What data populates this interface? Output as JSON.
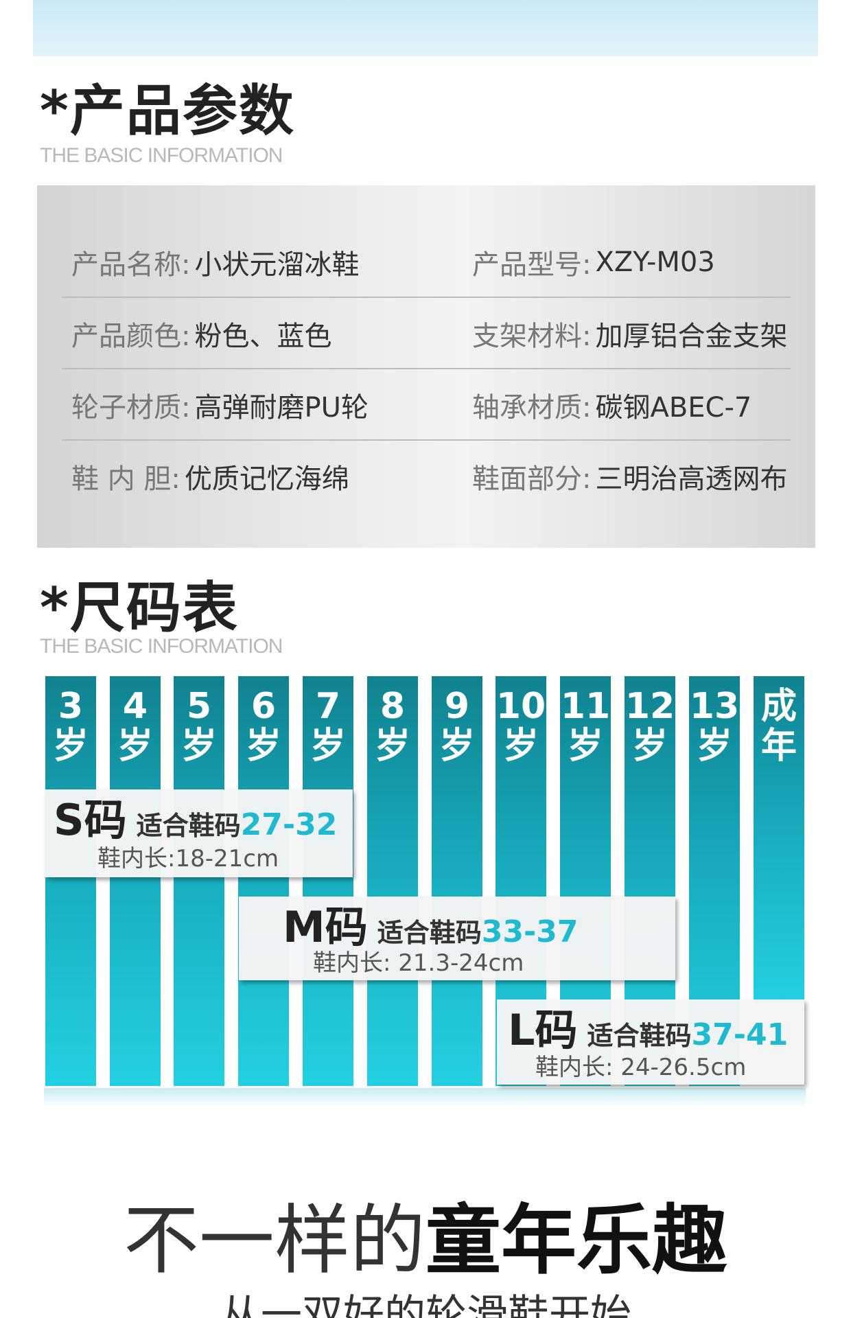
{
  "section1": {
    "title": "*产品参数",
    "subtitle": "THE BASIC INFORMATION"
  },
  "params": [
    {
      "left_label": "产品名称:",
      "left_value": "小状元溜冰鞋",
      "right_label": "产品型号:",
      "right_value": "XZY-M03"
    },
    {
      "left_label": "产品颜色:",
      "left_value": "粉色、蓝色",
      "right_label": "支架材料:",
      "right_value": "加厚铝合金支架"
    },
    {
      "left_label": "轮子材质:",
      "left_value": "高弹耐磨PU轮",
      "right_label": "轴承材质:",
      "right_value": "碳钢ABEC-7"
    },
    {
      "left_label": "鞋 内 胆:",
      "left_value": "优质记忆海绵",
      "right_label": "鞋面部分:",
      "right_value": "三明治高透网布"
    }
  ],
  "section2": {
    "title": "*尺码表",
    "subtitle": "THE BASIC INFORMATION"
  },
  "age_bars": [
    {
      "top": "3",
      "bottom": "岁"
    },
    {
      "top": "4",
      "bottom": "岁"
    },
    {
      "top": "5",
      "bottom": "岁"
    },
    {
      "top": "6",
      "bottom": "岁"
    },
    {
      "top": "7",
      "bottom": "岁"
    },
    {
      "top": "8",
      "bottom": "岁"
    },
    {
      "top": "9",
      "bottom": "岁"
    },
    {
      "top": "10",
      "bottom": "岁"
    },
    {
      "top": "11",
      "bottom": "岁"
    },
    {
      "top": "12",
      "bottom": "岁"
    },
    {
      "top": "13",
      "bottom": "岁"
    },
    {
      "top": "成",
      "bottom": "年"
    }
  ],
  "sizes": [
    {
      "code": "S码",
      "fit": "适合鞋码",
      "range": "27-32",
      "length": "鞋内长:18-21cm"
    },
    {
      "code": "M码",
      "fit": "适合鞋码",
      "range": "33-37",
      "length": "鞋内长: 21.3-24cm"
    },
    {
      "code": "L码",
      "fit": "适合鞋码",
      "range": "37-41",
      "length": "鞋内长: 24-26.5cm"
    }
  ],
  "slogan": {
    "thin": "不一样的",
    "bold": "童年乐趣",
    "sub": "从一双好的轮滑鞋开始"
  },
  "colors": {
    "bar_top": "#11828f",
    "bar_bottom": "#23d0e2",
    "accent": "#1fb9d0"
  }
}
